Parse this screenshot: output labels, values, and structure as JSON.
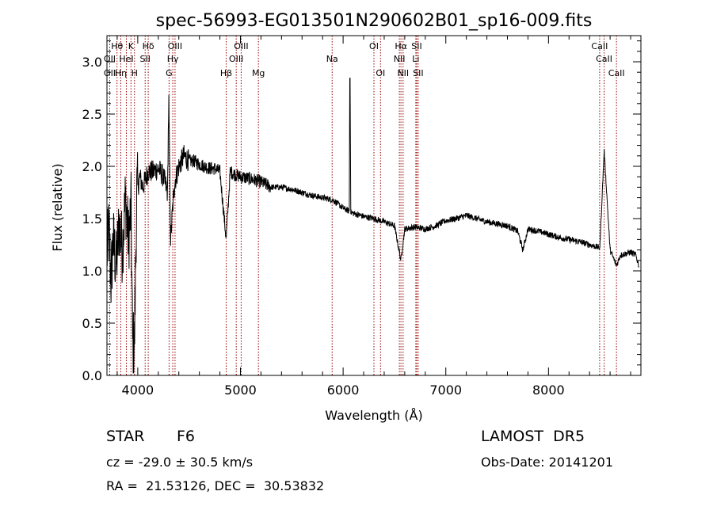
{
  "chart_data": {
    "type": "line",
    "title": "spec-56993-EG013501N290602B01_sp16-009.fits",
    "xlabel": "Wavelength (Å)",
    "ylabel": "Flux (relative)",
    "xlim": [
      3700,
      8900
    ],
    "ylim": [
      0.0,
      3.25
    ],
    "xticks": [
      4000,
      5000,
      6000,
      7000,
      8000
    ],
    "xtick_labels": [
      "4000",
      "5000",
      "6000",
      "7000",
      "8000"
    ],
    "yticks": [
      0.0,
      0.5,
      1.0,
      1.5,
      2.0,
      2.5,
      3.0
    ],
    "ytick_labels": [
      "0.0",
      "0.5",
      "1.0",
      "1.5",
      "2.0",
      "2.5",
      "3.0"
    ],
    "line_color": "#000000",
    "marker_color": "#990000",
    "grid": false,
    "spectrum_anchors": {
      "x": [
        3700,
        3720,
        3740,
        3760,
        3790,
        3820,
        3850,
        3880,
        3910,
        3935,
        3950,
        3968,
        3990,
        4020,
        4050,
        4100,
        4150,
        4200,
        4250,
        4290,
        4302,
        4320,
        4340,
        4360,
        4400,
        4450,
        4500,
        4550,
        4600,
        4650,
        4700,
        4750,
        4800,
        4861,
        4900,
        4950,
        5000,
        5100,
        5200,
        5300,
        5400,
        5500,
        5600,
        5700,
        5800,
        5900,
        6000,
        6060,
        6066,
        6075,
        6100,
        6200,
        6300,
        6400,
        6500,
        6563,
        6600,
        6700,
        6800,
        6900,
        7000,
        7100,
        7200,
        7300,
        7400,
        7500,
        7600,
        7700,
        7750,
        7800,
        7900,
        8000,
        8100,
        8200,
        8300,
        8400,
        8500,
        8542,
        8600,
        8662,
        8700,
        8800,
        8850,
        8880
      ],
      "y": [
        1.15,
        1.4,
        0.9,
        1.3,
        1.05,
        1.45,
        1.2,
        1.7,
        1.3,
        1.6,
        0.3,
        0.3,
        1.75,
        1.9,
        1.8,
        1.95,
        1.95,
        1.98,
        1.9,
        1.75,
        2.65,
        1.3,
        1.6,
        1.85,
        2.0,
        2.1,
        2.05,
        2.05,
        2.02,
        2.0,
        1.98,
        1.98,
        1.95,
        1.3,
        1.95,
        1.92,
        1.9,
        1.88,
        1.85,
        1.8,
        1.8,
        1.78,
        1.75,
        1.72,
        1.7,
        1.68,
        1.6,
        1.57,
        3.1,
        1.56,
        1.55,
        1.52,
        1.5,
        1.47,
        1.43,
        1.1,
        1.4,
        1.42,
        1.4,
        1.43,
        1.48,
        1.5,
        1.53,
        1.5,
        1.47,
        1.45,
        1.43,
        1.38,
        1.2,
        1.4,
        1.38,
        1.35,
        1.32,
        1.3,
        1.28,
        1.25,
        1.22,
        2.15,
        1.2,
        1.05,
        1.15,
        1.18,
        1.15,
        1.05
      ]
    },
    "line_markers": [
      {
        "name": "Hθ",
        "x": 3798,
        "row": 1
      },
      {
        "name": "OII",
        "x": 3727,
        "row": 2
      },
      {
        "name": "OII",
        "x": 3727,
        "row": 3
      },
      {
        "name": "Hη",
        "x": 3835,
        "row": 3
      },
      {
        "name": "HeI",
        "x": 3889,
        "row": 2
      },
      {
        "name": "K",
        "x": 3934,
        "row": 1
      },
      {
        "name": "H",
        "x": 3968,
        "row": 3
      },
      {
        "name": "Hδ",
        "x": 4102,
        "row": 1
      },
      {
        "name": "SII",
        "x": 4072,
        "row": 2
      },
      {
        "name": "OIII",
        "x": 4363,
        "row": 1
      },
      {
        "name": "Hγ",
        "x": 4341,
        "row": 2
      },
      {
        "name": "G",
        "x": 4305,
        "row": 3
      },
      {
        "name": "Hβ",
        "x": 4861,
        "row": 3
      },
      {
        "name": "OIII",
        "x": 5007,
        "row": 1
      },
      {
        "name": "OIII",
        "x": 4959,
        "row": 2
      },
      {
        "name": "Mg",
        "x": 5175,
        "row": 3
      },
      {
        "name": "Na",
        "x": 5893,
        "row": 2
      },
      {
        "name": "OI",
        "x": 6300,
        "row": 1
      },
      {
        "name": "OI",
        "x": 6364,
        "row": 3
      },
      {
        "name": "Hα",
        "x": 6563,
        "row": 1
      },
      {
        "name": "NII",
        "x": 6548,
        "row": 2
      },
      {
        "name": "NII",
        "x": 6584,
        "row": 3
      },
      {
        "name": "SII",
        "x": 6717,
        "row": 1
      },
      {
        "name": "Li",
        "x": 6708,
        "row": 2
      },
      {
        "name": "SII",
        "x": 6731,
        "row": 3
      },
      {
        "name": "CaII",
        "x": 8498,
        "row": 1
      },
      {
        "name": "CaII",
        "x": 8542,
        "row": 2
      },
      {
        "name": "CaII",
        "x": 8662,
        "row": 3
      }
    ]
  },
  "info": {
    "object_class": "STAR",
    "subclass": "F6",
    "survey": "LAMOST  DR5",
    "cz": "cz = -29.0 ± 30.5 km/s",
    "obs_date": "Obs-Date: 20141201",
    "coords": "RA =  21.53126, DEC =  30.53832"
  }
}
